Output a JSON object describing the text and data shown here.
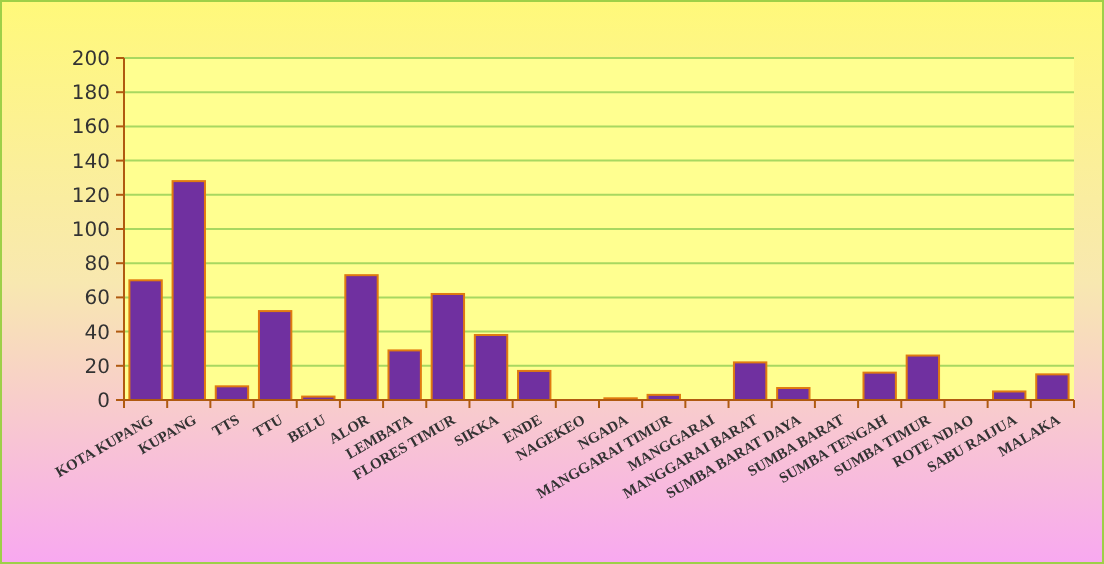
{
  "chart_data": {
    "type": "bar",
    "categories": [
      "KOTA KUPANG",
      "KUPANG",
      "TTS",
      "TTU",
      "BELU",
      "ALOR",
      "LEMBATA",
      "FLORES TIMUR",
      "SIKKA",
      "ENDE",
      "NAGEKEO",
      "NGADA",
      "MANGGARAI TIMUR",
      "MANGGARAI",
      "MANGGARAI BARAT",
      "SUMBA BARAT DAYA",
      "SUMBA BARAT",
      "SUMBA TENGAH",
      "SUMBA TIMUR",
      "ROTE NDAO",
      "SABU RAIJUA",
      "MALAKA"
    ],
    "values": [
      70,
      128,
      8,
      52,
      2,
      73,
      29,
      62,
      38,
      17,
      0,
      1,
      3,
      0,
      22,
      7,
      0,
      16,
      26,
      0,
      5,
      15
    ],
    "color": "#7030a0",
    "ylim": [
      0,
      200
    ],
    "yticks": [
      0,
      20,
      40,
      60,
      80,
      100,
      120,
      140,
      160,
      180,
      200
    ],
    "grid": "y"
  }
}
